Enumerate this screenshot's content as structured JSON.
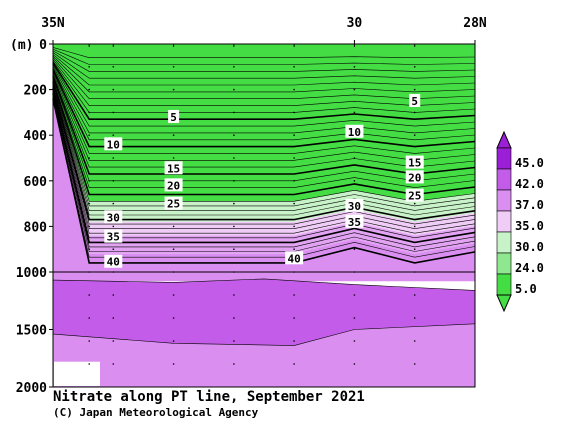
{
  "chart_data": {
    "type": "contour",
    "title": "Nitrate along PT line, September 2021",
    "credit": "(C) Japan Meteorological Agency",
    "x_axis": {
      "ticks": [
        "35N",
        "30",
        "28N"
      ],
      "tick_lat": [
        35,
        30,
        28
      ],
      "direction": "north-to-south"
    },
    "y_axis": {
      "unit_label": "(m)",
      "ticks": [
        "0",
        "200",
        "400",
        "600",
        "800",
        "1000",
        "1500",
        "2000"
      ],
      "tick_depths": [
        0,
        200,
        400,
        600,
        800,
        1000,
        1500,
        2000
      ],
      "scale": "0-1000 m stretched, 1000-2000 m compressed"
    },
    "colorbar": {
      "labels": [
        "45.0",
        "42.0",
        "37.0",
        "35.0",
        "30.0",
        "24.0",
        "5.0"
      ],
      "colors": [
        "#9b1fd6",
        "#c35ce8",
        "#d98ef0",
        "#f0cdf7",
        "#c8f2c8",
        "#8fe88f",
        "#44dd44"
      ]
    },
    "contour_labels": [
      {
        "text": "5",
        "depth": 320,
        "lat": 33.0
      },
      {
        "text": "5",
        "depth": 250,
        "lat": 29.0
      },
      {
        "text": "10",
        "depth": 440,
        "lat": 34.0
      },
      {
        "text": "10",
        "depth": 385,
        "lat": 30.0
      },
      {
        "text": "15",
        "depth": 545,
        "lat": 33.0
      },
      {
        "text": "15",
        "depth": 520,
        "lat": 29.0
      },
      {
        "text": "20",
        "depth": 620,
        "lat": 33.0
      },
      {
        "text": "20",
        "depth": 585,
        "lat": 29.0
      },
      {
        "text": "25",
        "depth": 700,
        "lat": 33.0
      },
      {
        "text": "25",
        "depth": 665,
        "lat": 29.0
      },
      {
        "text": "30",
        "depth": 760,
        "lat": 34.0
      },
      {
        "text": "30",
        "depth": 710,
        "lat": 30.0
      },
      {
        "text": "35",
        "depth": 845,
        "lat": 34.0
      },
      {
        "text": "35",
        "depth": 780,
        "lat": 30.0
      },
      {
        "text": "40",
        "depth": 955,
        "lat": 34.0
      },
      {
        "text": "40",
        "depth": 940,
        "lat": 31.0
      }
    ]
  }
}
